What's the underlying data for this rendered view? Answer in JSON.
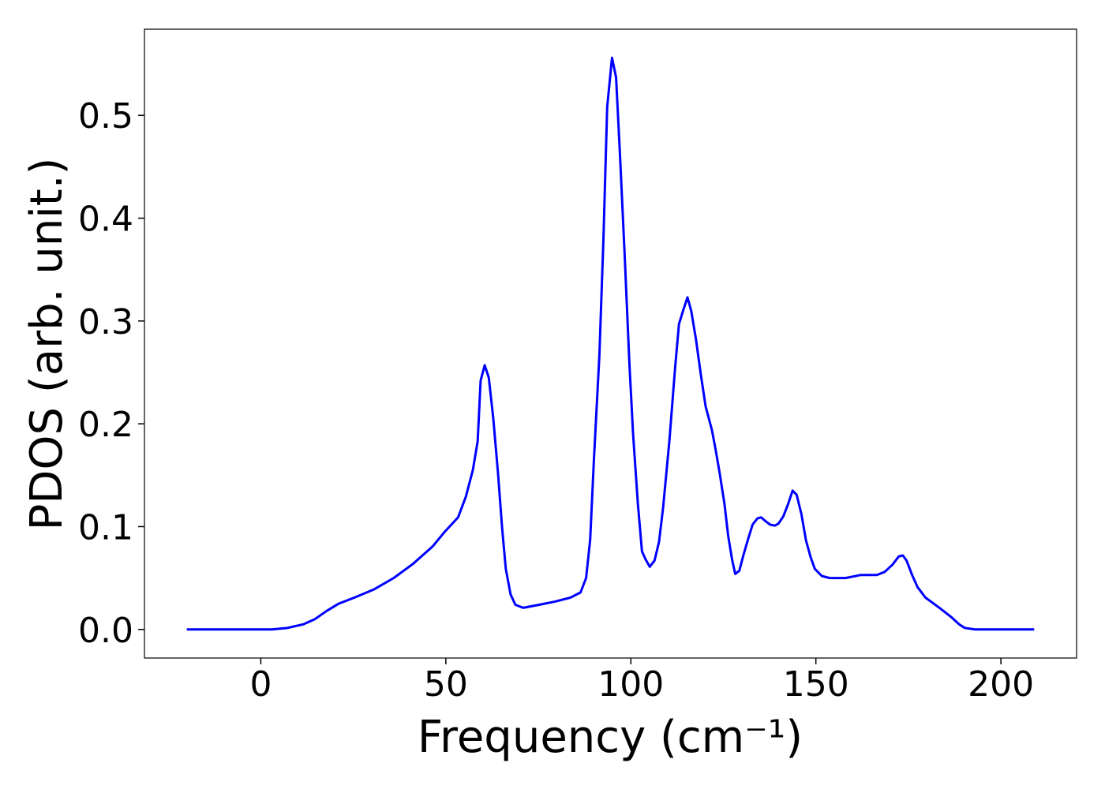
{
  "chart_data": {
    "type": "line",
    "xlabel": "Frequency (cm⁻¹)",
    "ylabel": "PDOS (arb. unit.)",
    "xlim": [
      -31.45,
      220.45
    ],
    "ylim": [
      -0.0278,
      0.5838
    ],
    "xticks": [
      0,
      50,
      100,
      150,
      200
    ],
    "yticks": [
      {
        "value": 0,
        "label": "0.0"
      },
      0.1,
      0.2,
      0.3,
      0.4,
      0.5
    ],
    "grid": false,
    "series": [
      {
        "color": "#0000ff",
        "x": [
          -20,
          0,
          3,
          7.2,
          11.5,
          14.6,
          17.8,
          21,
          25.3,
          30.6,
          35.9,
          41.2,
          46.5,
          49.7,
          53.3,
          55.4,
          57.3,
          58.6,
          59.4,
          60.5,
          61.6,
          62.8,
          64.1,
          65.2,
          66.2,
          67.5,
          68.8,
          70.9,
          75.2,
          79.4,
          83.7,
          86.4,
          87.9,
          89,
          90,
          91.5,
          92.6,
          93.6,
          94.9,
          96,
          97,
          98.3,
          99.6,
          100.6,
          101.9,
          103,
          104,
          105.1,
          106.4,
          107.6,
          108.7,
          110.4,
          111.9,
          113,
          114.2,
          115.3,
          116.3,
          117.6,
          118.9,
          120.2,
          121.9,
          122.9,
          124,
          125.3,
          126.3,
          127.4,
          128.2,
          129.3,
          130.4,
          131.6,
          132.9,
          134.2,
          135.2,
          136.5,
          137.6,
          138.9,
          139.9,
          141.2,
          142.5,
          143.7,
          144.8,
          146.1,
          147.3,
          148.6,
          149.7,
          151.6,
          153.7,
          158,
          162.2,
          166.5,
          168.6,
          170.7,
          172.4,
          173.5,
          174.5,
          176,
          177.5,
          179.6,
          183.4,
          186.6,
          188.7,
          190.2,
          193,
          209
        ],
        "values": [
          0,
          0,
          0,
          0.0015,
          0.005,
          0.01,
          0.018,
          0.025,
          0.031,
          0.039,
          0.05,
          0.064,
          0.081,
          0.095,
          0.109,
          0.129,
          0.155,
          0.183,
          0.242,
          0.257,
          0.245,
          0.206,
          0.152,
          0.099,
          0.059,
          0.034,
          0.024,
          0.021,
          0.024,
          0.027,
          0.031,
          0.036,
          0.05,
          0.087,
          0.164,
          0.267,
          0.381,
          0.508,
          0.556,
          0.537,
          0.466,
          0.366,
          0.259,
          0.19,
          0.122,
          0.076,
          0.068,
          0.061,
          0.067,
          0.085,
          0.118,
          0.183,
          0.252,
          0.297,
          0.311,
          0.323,
          0.31,
          0.282,
          0.248,
          0.217,
          0.194,
          0.175,
          0.152,
          0.122,
          0.091,
          0.067,
          0.054,
          0.057,
          0.072,
          0.087,
          0.102,
          0.108,
          0.109,
          0.105,
          0.102,
          0.101,
          0.103,
          0.11,
          0.122,
          0.135,
          0.131,
          0.112,
          0.087,
          0.07,
          0.059,
          0.052,
          0.05,
          0.05,
          0.053,
          0.053,
          0.056,
          0.063,
          0.071,
          0.072,
          0.067,
          0.053,
          0.041,
          0.031,
          0.021,
          0.012,
          0.005,
          0.0015,
          0,
          0
        ]
      }
    ]
  }
}
